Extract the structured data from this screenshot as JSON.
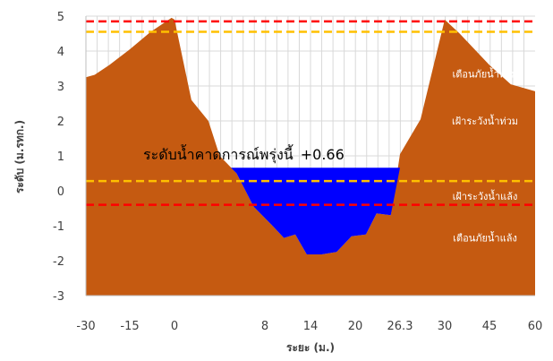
{
  "chart_data": {
    "type": "area",
    "xlabel": "ระยะ (ม.)",
    "ylabel": "ระดับ (ม.รทก.)",
    "x_ticks": [
      "-30",
      "-15",
      "0",
      "8",
      "14",
      "20",
      "26.3",
      "30",
      "45",
      "60"
    ],
    "y_ticks": [
      5,
      4,
      3,
      2,
      1,
      0,
      -1,
      -2,
      -3
    ],
    "ylim": [
      -3,
      5
    ],
    "grid": true,
    "terrain_color": "#c55a11",
    "water_color": "#0000ff",
    "terrain_profile": [
      {
        "x": -30,
        "y": 3.25
      },
      {
        "x": -27,
        "y": 3.32
      },
      {
        "x": -22,
        "y": 3.6
      },
      {
        "x": -15,
        "y": 4.05
      },
      {
        "x": -8,
        "y": 4.55
      },
      {
        "x": -1,
        "y": 4.95
      },
      {
        "x": 0,
        "y": 4.9
      },
      {
        "x": 1.5,
        "y": 2.6
      },
      {
        "x": 3,
        "y": 2.0
      },
      {
        "x": 4,
        "y": 1.0
      },
      {
        "x": 5.5,
        "y": 0.5
      },
      {
        "x": 7,
        "y": -0.45
      },
      {
        "x": 9,
        "y": -1.0
      },
      {
        "x": 10.5,
        "y": -1.35
      },
      {
        "x": 12,
        "y": -1.25
      },
      {
        "x": 13.5,
        "y": -1.82
      },
      {
        "x": 15.5,
        "y": -1.82
      },
      {
        "x": 17.5,
        "y": -1.75
      },
      {
        "x": 19.5,
        "y": -1.3
      },
      {
        "x": 21.5,
        "y": -1.25
      },
      {
        "x": 23,
        "y": -0.65
      },
      {
        "x": 25,
        "y": -0.7
      },
      {
        "x": 26.3,
        "y": 1.05
      },
      {
        "x": 28,
        "y": 2.05
      },
      {
        "x": 30,
        "y": 4.9
      },
      {
        "x": 35,
        "y": 4.5
      },
      {
        "x": 45,
        "y": 3.6
      },
      {
        "x": 52,
        "y": 3.05
      },
      {
        "x": 60,
        "y": 2.85
      }
    ],
    "forecast": {
      "label": "ระดับน้ำคาดการณ์พรุ่งนี้",
      "value_label": "+0.66",
      "level": 0.66,
      "x_start": 5,
      "x_end": 26.3
    },
    "reference_lines": [
      {
        "name": "flood_warning",
        "y": 4.85,
        "color": "#ff0000"
      },
      {
        "name": "flood_watch",
        "y": 4.55,
        "color": "#ffc000"
      },
      {
        "name": "drought_watch",
        "y": 0.28,
        "color": "#ffc000"
      },
      {
        "name": "drought_warning",
        "y": -0.4,
        "color": "#ff0000"
      }
    ],
    "zone_labels": [
      {
        "text": "เตือนภัยน้ำท่วม",
        "x": 43.5,
        "y": 3.35
      },
      {
        "text": "เฝ้าระวังน้ำท่วม",
        "x": 43.5,
        "y": 2.0
      },
      {
        "text": "เฝ้าระวังน้ำแล้ง",
        "x": 43.5,
        "y": -0.15
      },
      {
        "text": "เตือนภัยน้ำแล้ง",
        "x": 43.5,
        "y": -1.35
      }
    ]
  }
}
